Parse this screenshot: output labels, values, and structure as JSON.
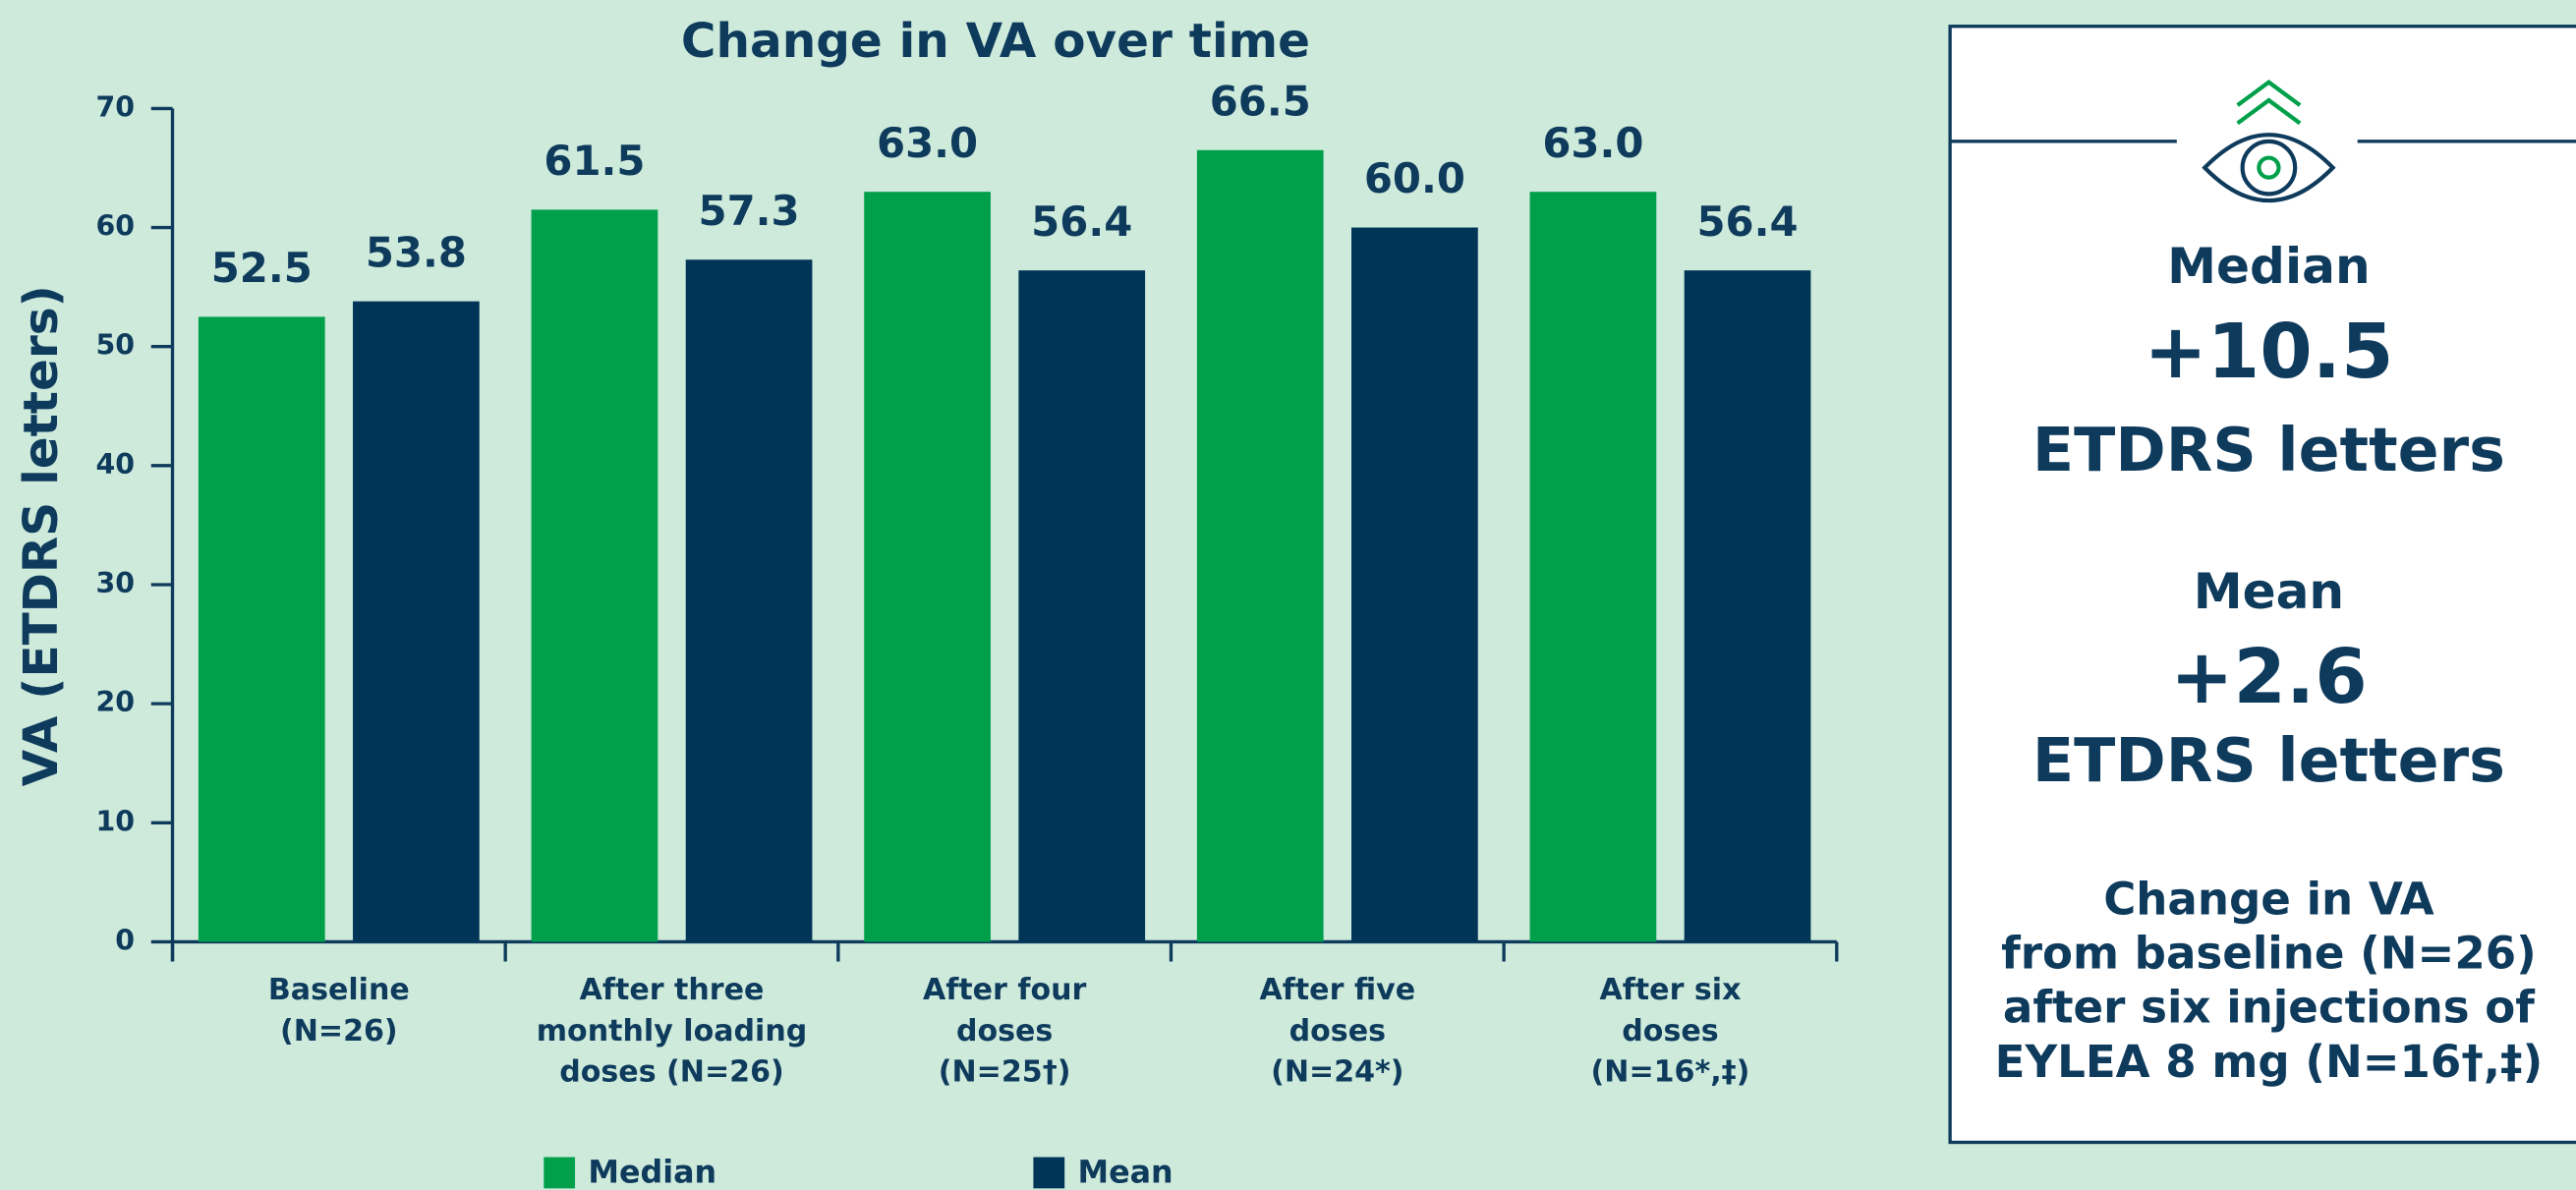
{
  "chart_data": {
    "type": "bar",
    "title": "Change in VA over time",
    "y_label": "VA (ETDRS letters)",
    "categories": [
      [
        "Baseline",
        "(N=26)"
      ],
      [
        "After three",
        "monthly loading",
        "doses (N=26)"
      ],
      [
        "After four",
        "doses",
        "(N=25†)"
      ],
      [
        "After five",
        "doses",
        "(N=24*)"
      ],
      [
        "After six",
        "doses",
        "(N=16*,‡)"
      ]
    ],
    "series": [
      {
        "name": "Median",
        "color": "#00a04b",
        "values": [
          52.5,
          61.5,
          63.0,
          66.5,
          63.0
        ],
        "value_labels": [
          "52.5",
          "61.5",
          "63.0",
          "66.5",
          "63.0"
        ]
      },
      {
        "name": "Mean",
        "color": "#003557",
        "values": [
          53.8,
          57.3,
          56.4,
          60.0,
          56.4
        ],
        "value_labels": [
          "53.8",
          "57.3",
          "56.4",
          "60.0",
          "56.4"
        ]
      }
    ],
    "ylim": [
      0,
      70
    ],
    "yticks": [
      0,
      10,
      20,
      30,
      40,
      50,
      60,
      70
    ]
  },
  "panel": {
    "median_title": "Median",
    "median_value": "+10.5",
    "median_unit": "ETDRS letters",
    "mean_title": "Mean",
    "mean_value": "+2.6",
    "mean_unit": "ETDRS letters",
    "note": [
      "Change in VA",
      "from baseline (N=26)",
      "after six injections of",
      "EYLEA 8 mg (N=16†,‡)"
    ]
  }
}
